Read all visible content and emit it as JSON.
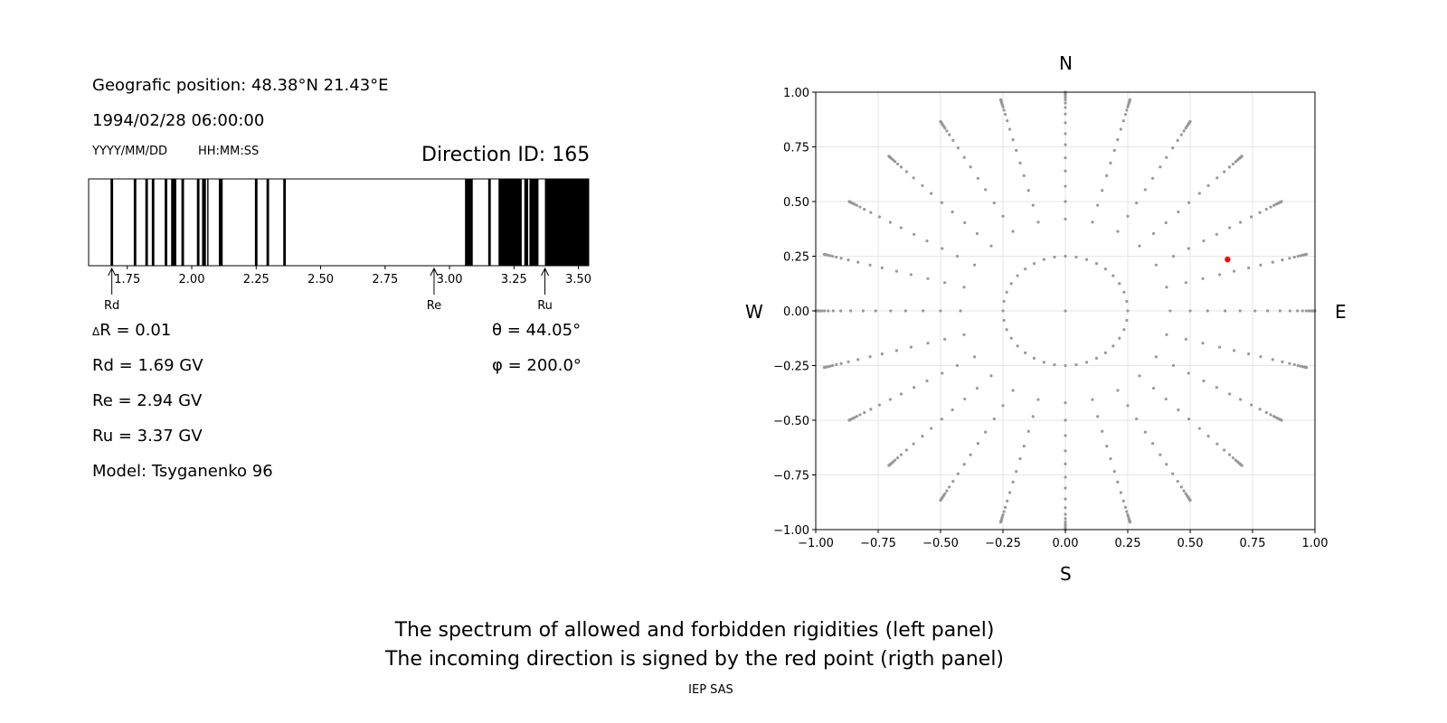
{
  "info": {
    "position": "Geografic position: 48.38°N 21.43°E",
    "datetime": "1994/02/28 06:00:00",
    "date_format": "YYYY/MM/DD",
    "time_format": "HH:MM:SS",
    "direction_id": "Direction ID: 165",
    "delta_r": "R = 0.01",
    "delta_symbol": "Δ",
    "rd": "Rd = 1.69 GV",
    "re": "Re = 2.94 GV",
    "ru": "Ru = 3.37 GV",
    "model": "Model: Tsyganenko 96",
    "theta": "θ = 44.05°",
    "phi": "φ = 200.0°"
  },
  "compass": {
    "north": "N",
    "south": "S",
    "west": "W",
    "east": "E"
  },
  "caption": {
    "line1": "The spectrum of allowed and forbidden rigidities (left panel)",
    "line2": "The incoming direction is signed by the red point (rigth panel)",
    "credit": "IEP SAS"
  },
  "chart_data": [
    {
      "type": "spectrum",
      "xlim": [
        1.6,
        3.54
      ],
      "xticks": [
        "1.75",
        "2.00",
        "2.25",
        "2.50",
        "2.75",
        "3.00",
        "3.25",
        "3.50"
      ],
      "xtick_values": [
        1.75,
        2.0,
        2.25,
        2.5,
        2.75,
        3.0,
        3.25,
        3.5
      ],
      "forbidden_bands": [
        [
          1.685,
          1.695
        ],
        [
          1.775,
          1.785
        ],
        [
          1.82,
          1.83
        ],
        [
          1.845,
          1.855
        ],
        [
          1.895,
          1.905
        ],
        [
          1.92,
          1.94
        ],
        [
          1.96,
          1.97
        ],
        [
          2.02,
          2.03
        ],
        [
          2.04,
          2.055
        ],
        [
          2.06,
          2.065
        ],
        [
          2.105,
          2.12
        ],
        [
          2.245,
          2.255
        ],
        [
          2.29,
          2.3
        ],
        [
          2.355,
          2.365
        ],
        [
          3.06,
          3.09
        ],
        [
          3.15,
          3.16
        ],
        [
          3.19,
          3.28
        ],
        [
          3.29,
          3.305
        ],
        [
          3.31,
          3.345
        ],
        [
          3.37,
          3.54
        ]
      ],
      "markers": [
        {
          "label": "Rd",
          "value": 1.69
        },
        {
          "label": "Re",
          "value": 2.94
        },
        {
          "label": "Ru",
          "value": 3.37
        }
      ]
    },
    {
      "type": "scatter",
      "xlim": [
        -1.0,
        1.0
      ],
      "ylim": [
        -1.0,
        1.0
      ],
      "xticks": [
        "−1.00",
        "−0.75",
        "−0.50",
        "−0.25",
        "0.00",
        "0.25",
        "0.50",
        "0.75",
        "1.00"
      ],
      "yticks": [
        "−1.00",
        "−0.75",
        "−0.50",
        "−0.25",
        "0.00",
        "0.25",
        "0.50",
        "0.75",
        "1.00"
      ],
      "tick_values": [
        -1.0,
        -0.75,
        -0.5,
        -0.25,
        0.0,
        0.25,
        0.5,
        0.75,
        1.0
      ],
      "grid": true,
      "grid_points": {
        "rings": [
          {
            "radius": 0.0,
            "count": 1
          },
          {
            "radius": 0.25,
            "count": 36
          },
          {
            "radius": 0.42,
            "count": 24
          },
          {
            "radius": 0.5,
            "count": 24
          },
          {
            "radius": 0.57,
            "count": 24
          },
          {
            "radius": 0.64,
            "count": 24
          },
          {
            "radius": 0.7,
            "count": 24
          },
          {
            "radius": 0.76,
            "count": 24
          },
          {
            "radius": 0.81,
            "count": 24
          },
          {
            "radius": 0.86,
            "count": 24
          },
          {
            "radius": 0.9,
            "count": 24
          },
          {
            "radius": 0.93,
            "count": 24
          },
          {
            "radius": 0.95,
            "count": 24
          },
          {
            "radius": 0.965,
            "count": 24
          },
          {
            "radius": 0.975,
            "count": 24
          },
          {
            "radius": 0.983,
            "count": 24
          },
          {
            "radius": 0.989,
            "count": 24
          },
          {
            "radius": 0.993,
            "count": 24
          },
          {
            "radius": 0.996,
            "count": 24
          },
          {
            "radius": 0.998,
            "count": 24
          },
          {
            "radius": 1.0,
            "count": 24
          }
        ],
        "color": "#999999"
      },
      "highlight_point": {
        "x": 0.65,
        "y": 0.235,
        "color": "#ff0000"
      }
    }
  ]
}
